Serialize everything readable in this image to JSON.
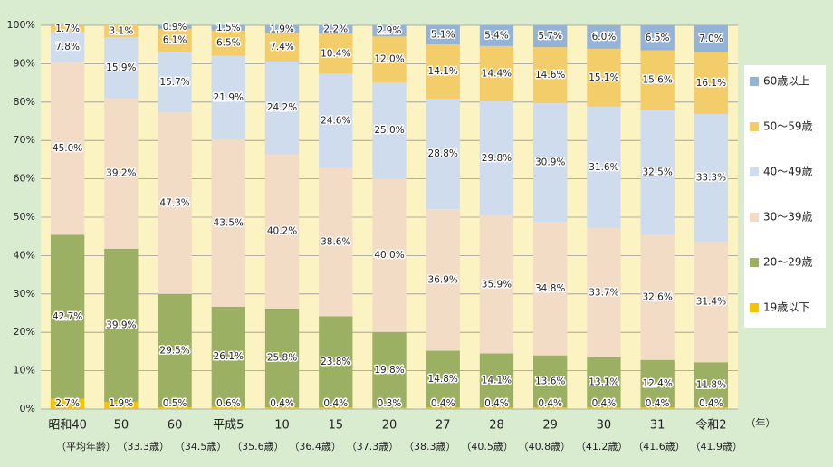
{
  "chart_data": {
    "type": "stacked_bar",
    "categories": [
      "昭和40",
      "50",
      "60",
      "平成5",
      "10",
      "15",
      "20",
      "27",
      "28",
      "29",
      "30",
      "31",
      "令和2"
    ],
    "age_labels": [
      "（平均年齢）",
      "（33.3歳）",
      "（34.5歳）",
      "（35.6歳）",
      "（36.4歳）",
      "（37.3歳）",
      "（38.3歳）",
      "（40.5歳）",
      "（40.8歳）",
      "（41.2歳）",
      "（41.6歳）",
      "（41.9歳）"
    ],
    "x_unit": "（年）",
    "ylim": [
      0,
      100
    ],
    "yticks": [
      {
        "value": 0,
        "label": "0%"
      },
      {
        "value": 10,
        "label": "10%"
      },
      {
        "value": 20,
        "label": "20%"
      },
      {
        "value": 30,
        "label": "30%"
      },
      {
        "value": 40,
        "label": "40%"
      },
      {
        "value": 50,
        "label": "50%"
      },
      {
        "value": 60,
        "label": "60%"
      },
      {
        "value": 70,
        "label": "70%"
      },
      {
        "value": 80,
        "label": "80%"
      },
      {
        "value": 90,
        "label": "90%"
      },
      {
        "value": 100,
        "label": "100%"
      }
    ],
    "grid": true,
    "legend": "right",
    "series": [
      {
        "name": "19歳以下",
        "color": "#f5c400",
        "values": [
          2.7,
          1.9,
          0.5,
          0.6,
          0.4,
          0.4,
          0.3,
          0.4,
          0.4,
          0.4,
          0.4,
          0.4,
          0.4
        ],
        "value_labels": [
          "2.7%",
          "1.9%",
          "0.5%",
          "0.6%",
          "0.4%",
          "0.4%",
          "0.3%",
          "0.4%",
          "0.4%",
          "0.4%",
          "0.4%",
          "0.4%",
          "0.4%"
        ]
      },
      {
        "name": "20～29歳",
        "color": "#9bb063",
        "values": [
          42.7,
          39.9,
          29.5,
          26.1,
          25.8,
          23.8,
          19.8,
          14.8,
          14.1,
          13.6,
          13.1,
          12.4,
          11.8
        ],
        "value_labels": [
          "42.7%",
          "39.9%",
          "29.5%",
          "26.1%",
          "25.8%",
          "23.8%",
          "19.8%",
          "14.8%",
          "14.1%",
          "13.6%",
          "13.1%",
          "12.4%",
          "11.8%"
        ]
      },
      {
        "name": "30～39歳",
        "color": "#f3dcc6",
        "values": [
          45.0,
          39.2,
          47.3,
          43.5,
          40.2,
          38.6,
          40.0,
          36.9,
          35.9,
          34.8,
          33.7,
          32.6,
          31.4
        ],
        "value_labels": [
          "45.0%",
          "39.2%",
          "47.3%",
          "43.5%",
          "40.2%",
          "38.6%",
          "40.0%",
          "36.9%",
          "35.9%",
          "34.8%",
          "33.7%",
          "32.6%",
          "31.4%"
        ]
      },
      {
        "name": "40～49歳",
        "color": "#cfdcee",
        "values": [
          7.8,
          15.9,
          15.7,
          21.9,
          24.2,
          24.6,
          25.0,
          28.8,
          29.8,
          30.9,
          31.6,
          32.5,
          33.3
        ],
        "value_labels": [
          "7.8%",
          "15.9%",
          "15.7%",
          "21.9%",
          "24.2%",
          "24.6%",
          "25.0%",
          "28.8%",
          "29.8%",
          "30.9%",
          "31.6%",
          "32.5%",
          "33.3%"
        ]
      },
      {
        "name": "50～59歳",
        "color": "#f3cd6a",
        "values": [
          1.7,
          3.1,
          6.1,
          6.5,
          7.4,
          10.4,
          12.0,
          14.1,
          14.4,
          14.6,
          15.1,
          15.6,
          16.1
        ],
        "value_labels": [
          "1.7%",
          "3.1%",
          "6.1%",
          "6.5%",
          "7.4%",
          "10.4%",
          "12.0%",
          "14.1%",
          "14.4%",
          "14.6%",
          "15.1%",
          "15.6%",
          "16.1%"
        ]
      },
      {
        "name": "60歳以上",
        "color": "#95b3d7",
        "values": [
          null,
          null,
          0.9,
          1.5,
          1.9,
          2.2,
          2.9,
          5.1,
          5.4,
          5.7,
          6.0,
          6.5,
          7.0
        ],
        "value_labels": [
          null,
          null,
          "0.9%",
          "1.5%",
          "1.9%",
          "2.2%",
          "2.9%",
          "5.1%",
          "5.4%",
          "5.7%",
          "6.0%",
          "6.5%",
          "7.0%"
        ]
      }
    ]
  }
}
